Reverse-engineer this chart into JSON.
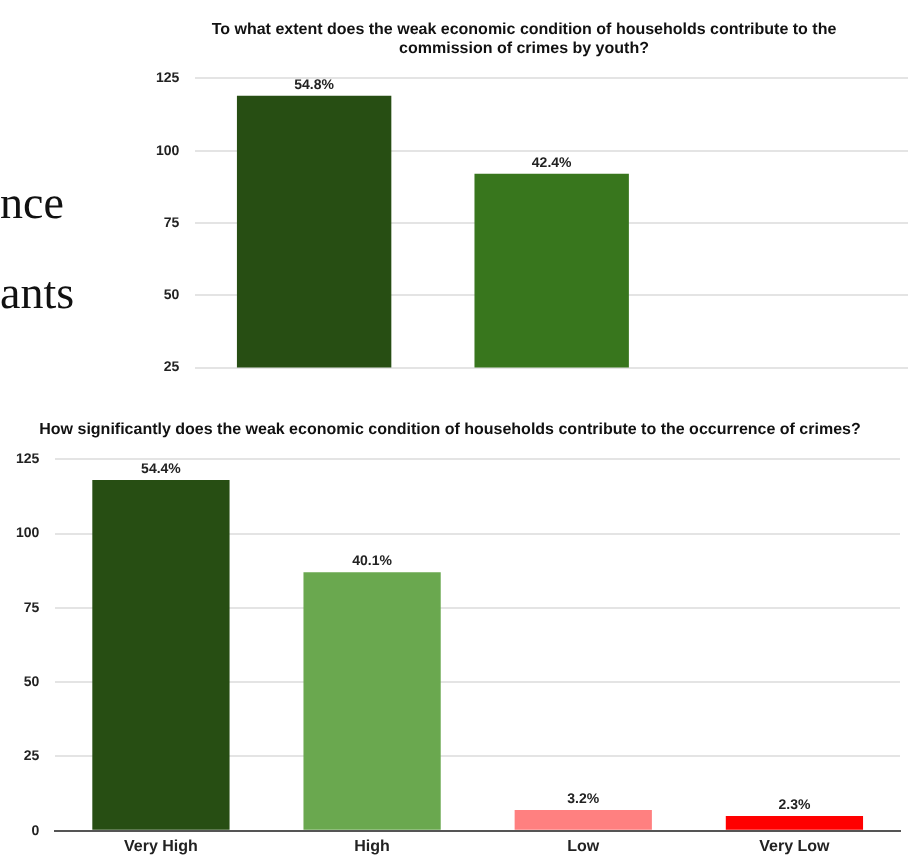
{
  "chart_data": [
    {
      "type": "bar",
      "title": "To what extent does the weak economic condition of households contribute to the commission of crimes by youth?",
      "categories": [
        null,
        null,
        null
      ],
      "values": [
        119,
        92,
        null
      ],
      "colors": [
        "#274e13",
        "#38761d",
        "#38761d"
      ],
      "ylim": [
        25,
        125
      ],
      "yticks": [
        25,
        50,
        75,
        100,
        125
      ],
      "grid": "y",
      "tick_labels": "y",
      "annotations": [
        "nce",
        "ants",
        {
          "text": "54.8%",
          "y": 119
        },
        {
          "text": "42.4%",
          "y": 92
        }
      ]
    },
    {
      "type": "bar",
      "title": "How significantly does the weak economic condition of households contribute to the occurrence of crimes?",
      "categories": [
        "Very High",
        "High",
        "Low",
        "Very Low"
      ],
      "values": [
        118,
        87,
        7,
        5
      ],
      "colors": [
        "#274e13",
        "#6aa84f",
        "#ff8080",
        "#ff0000"
      ],
      "ylim": [
        0,
        125
      ],
      "yticks": [
        0,
        25,
        50,
        75,
        100,
        125
      ],
      "grid": "y",
      "annotations": [
        {
          "text": "54.4%",
          "x": "Very High",
          "y": 118
        },
        {
          "text": "40.1%",
          "x": "High",
          "y": 87
        },
        {
          "text": "3.2%",
          "x": "Low",
          "y": 7
        },
        {
          "text": "2.3%",
          "x": "Very Low",
          "y": 5
        }
      ]
    }
  ]
}
